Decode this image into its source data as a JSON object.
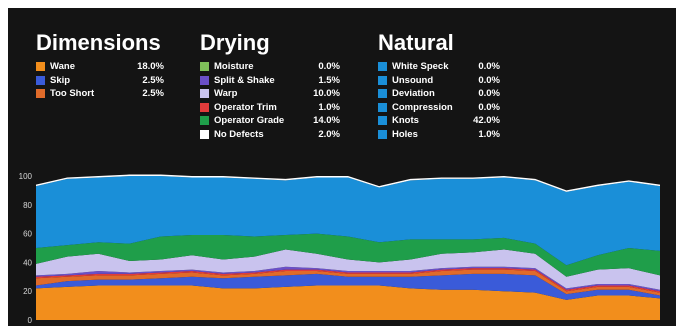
{
  "colors": {
    "background": "#141414",
    "text": "#ffffff",
    "wane": "#f28e1c",
    "skip": "#3a5bd9",
    "too_short": "#e06b2a",
    "moisture": "#7fbf5a",
    "split_shake": "#6a4fc8",
    "warp": "#c9c3ee",
    "operator_trim": "#e23b3b",
    "operator_grade": "#1f9e4a",
    "no_defects": "#ffffff",
    "natural": "#1a8fd8"
  },
  "legend_groups": [
    {
      "title": "Dimensions",
      "items": [
        {
          "label": "Wane",
          "value": "18.0%",
          "color": "#f28e1c"
        },
        {
          "label": "Skip",
          "value": "2.5%",
          "color": "#3a5bd9"
        },
        {
          "label": "Too Short",
          "value": "2.5%",
          "color": "#e06b2a"
        }
      ]
    },
    {
      "title": "Drying",
      "items": [
        {
          "label": "Moisture",
          "value": "0.0%",
          "color": "#7fbf5a"
        },
        {
          "label": "Split & Shake",
          "value": "1.5%",
          "color": "#6a4fc8"
        },
        {
          "label": "Warp",
          "value": "10.0%",
          "color": "#c9c3ee"
        },
        {
          "label": "Operator Trim",
          "value": "1.0%",
          "color": "#e23b3b"
        },
        {
          "label": "Operator Grade",
          "value": "14.0%",
          "color": "#1f9e4a"
        },
        {
          "label": "No Defects",
          "value": "2.0%",
          "color": "#ffffff"
        }
      ]
    },
    {
      "title": "Natural",
      "items": [
        {
          "label": "White Speck",
          "value": "0.0%",
          "color": "#1a8fd8"
        },
        {
          "label": "Unsound",
          "value": "0.0%",
          "color": "#1a8fd8"
        },
        {
          "label": "Deviation",
          "value": "0.0%",
          "color": "#1a8fd8"
        },
        {
          "label": "Compression",
          "value": "0.0%",
          "color": "#1a8fd8"
        },
        {
          "label": "Knots",
          "value": "42.0%",
          "color": "#1a8fd8"
        },
        {
          "label": "Holes",
          "value": "1.0%",
          "color": "#1a8fd8"
        }
      ]
    }
  ],
  "chart_data": {
    "type": "area",
    "stacked": true,
    "ylim": [
      0,
      100
    ],
    "yticks": [
      "0",
      "20",
      "40",
      "60",
      "80",
      "100"
    ],
    "grid": false,
    "x": [
      0,
      1,
      2,
      3,
      4,
      5,
      6,
      7,
      8,
      9,
      10,
      11,
      12,
      13,
      14,
      15,
      16,
      17,
      18,
      19,
      20
    ],
    "series": [
      {
        "color": "#f28e1c",
        "values": [
          22,
          23,
          24,
          24,
          24,
          24,
          22,
          22,
          23,
          24,
          24,
          24,
          22,
          21,
          21,
          20,
          19,
          14,
          17,
          17,
          15
        ]
      },
      {
        "color": "#3a5bd9",
        "values": [
          2,
          4,
          4,
          4,
          5,
          6,
          7,
          8,
          8,
          8,
          6,
          6,
          8,
          10,
          11,
          12,
          12,
          4,
          4,
          4,
          2
        ]
      },
      {
        "color": "#e06b2a",
        "values": [
          5,
          3,
          3,
          3,
          3,
          3,
          2,
          2,
          3,
          2,
          2,
          2,
          2,
          3,
          3,
          3,
          3,
          2,
          2,
          2,
          2
        ]
      },
      {
        "color": "#e23b3b",
        "values": [
          1,
          1,
          1,
          1,
          1,
          1,
          1,
          1,
          1,
          1,
          1,
          1,
          1,
          1,
          1,
          1,
          1,
          1,
          1,
          1,
          1
        ]
      },
      {
        "color": "#6a4fc8",
        "values": [
          1,
          1,
          2,
          1,
          1,
          1,
          1,
          1,
          2,
          1,
          1,
          1,
          1,
          1,
          1,
          1,
          1,
          1,
          1,
          1,
          1
        ]
      },
      {
        "color": "#c9c3ee",
        "values": [
          8,
          12,
          12,
          8,
          8,
          10,
          9,
          10,
          12,
          10,
          8,
          6,
          8,
          10,
          10,
          12,
          10,
          8,
          10,
          11,
          10
        ]
      },
      {
        "color": "#1f9e4a",
        "values": [
          11,
          8,
          8,
          12,
          16,
          14,
          17,
          14,
          10,
          14,
          16,
          14,
          14,
          10,
          9,
          8,
          7,
          8,
          10,
          14,
          17
        ]
      },
      {
        "color": "#1a8fd8",
        "values": [
          43,
          46,
          45,
          47,
          42,
          40,
          40,
          40,
          38,
          39,
          41,
          38,
          41,
          42,
          42,
          42,
          44,
          51,
          48,
          46,
          45
        ]
      },
      {
        "color": "#ffffff",
        "values": [
          1,
          1,
          1,
          1,
          1,
          1,
          1,
          1,
          1,
          1,
          1,
          1,
          1,
          1,
          1,
          1,
          1,
          1,
          1,
          1,
          1
        ]
      }
    ]
  }
}
